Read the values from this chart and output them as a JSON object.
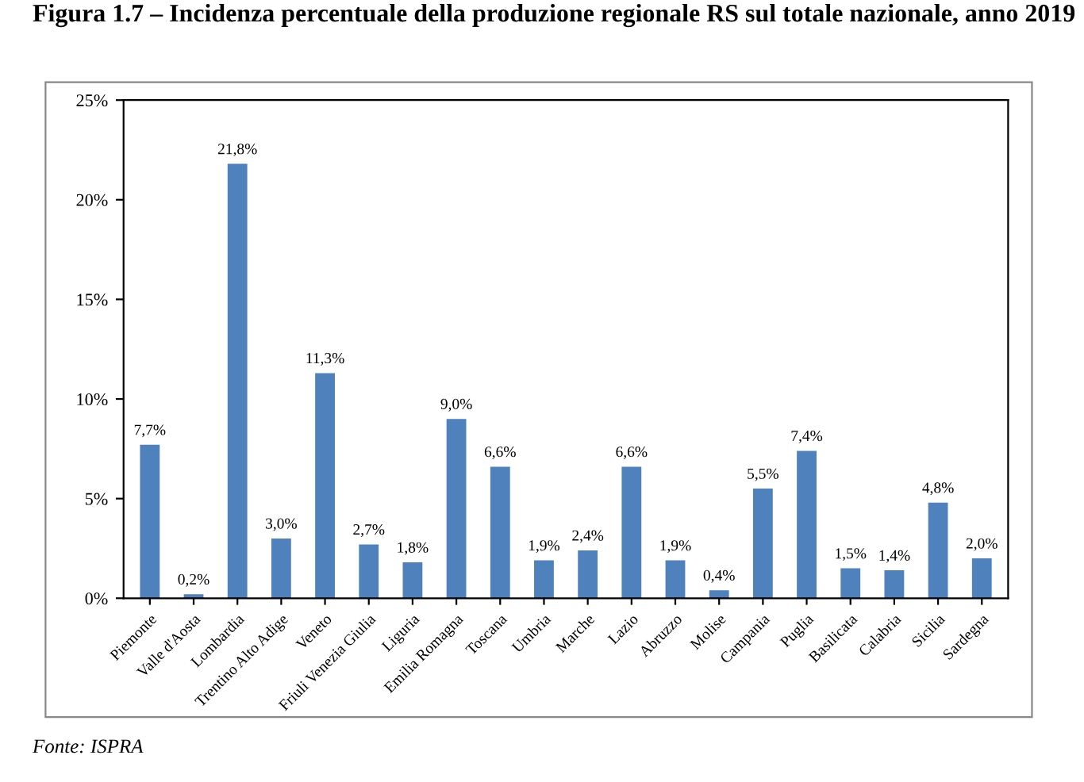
{
  "chart_data": {
    "type": "bar",
    "title": "Figura 1.7 – Incidenza percentuale della produzione regionale RS sul totale nazionale, anno 2019",
    "categories": [
      "Piemonte",
      "Valle d'Aosta",
      "Lombardia",
      "Trentino Alto Adige",
      "Veneto",
      "Friuli Venezia Giulia",
      "Liguria",
      "Emilia Romagna",
      "Toscana",
      "Umbria",
      "Marche",
      "Lazio",
      "Abruzzo",
      "Molise",
      "Campania",
      "Puglia",
      "Basilicata",
      "Calabria",
      "Sicilia",
      "Sardegna"
    ],
    "values": [
      7.7,
      0.2,
      21.8,
      3.0,
      11.3,
      2.7,
      1.8,
      9.0,
      6.6,
      1.9,
      2.4,
      6.6,
      1.9,
      0.4,
      5.5,
      7.4,
      1.5,
      1.4,
      4.8,
      2.0
    ],
    "value_labels": [
      "7,7%",
      "0,2%",
      "21,8%",
      "3,0%",
      "11,3%",
      "2,7%",
      "1,8%",
      "9,0%",
      "6,6%",
      "1,9%",
      "2,4%",
      "6,6%",
      "1,9%",
      "0,4%",
      "5,5%",
      "7,4%",
      "1,5%",
      "1,4%",
      "4,8%",
      "2,0%"
    ],
    "color": "#4f81bd",
    "ylim": [
      0,
      25
    ],
    "yticks": [
      {
        "value": 0,
        "label": "0%"
      },
      {
        "value": 5,
        "label": "5%"
      },
      {
        "value": 10,
        "label": "10%"
      },
      {
        "value": 15,
        "label": "15%"
      },
      {
        "value": 20,
        "label": "20%"
      },
      {
        "value": 25,
        "label": "25%"
      }
    ],
    "grid": false,
    "legend": false,
    "annotations": [
      "Fonte: ISPRA"
    ]
  }
}
